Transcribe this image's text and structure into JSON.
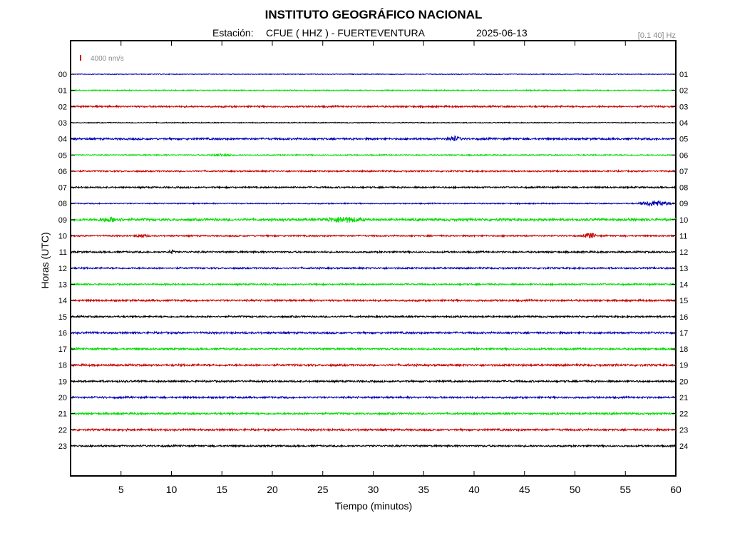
{
  "header": {
    "title": "INSTITUTO GEOGRÁFICO NACIONAL",
    "station_label": "Estación:",
    "station": "CFUE ( HHZ ) - FUERTEVENTURA",
    "date": "2025-06-13",
    "filter": "[0.1 40] Hz"
  },
  "scale": {
    "label": "4000 nm/s",
    "color": "#cc0000"
  },
  "chart_data": {
    "type": "line",
    "title": "INSTITUTO GEOGRÁFICO NACIONAL",
    "xlabel": "Tiempo (minutos)",
    "ylabel": "Horas (UTC)",
    "xlim": [
      0,
      60
    ],
    "x_ticks": [
      5,
      10,
      15,
      20,
      25,
      30,
      35,
      40,
      45,
      50,
      55,
      60
    ],
    "left_tick_labels": [
      "00",
      "01",
      "02",
      "03",
      "04",
      "05",
      "06",
      "07",
      "08",
      "09",
      "10",
      "11",
      "12",
      "13",
      "14",
      "15",
      "16",
      "17",
      "18",
      "19",
      "20",
      "21",
      "22",
      "23"
    ],
    "right_tick_labels": [
      "01",
      "02",
      "03",
      "04",
      "05",
      "06",
      "07",
      "08",
      "09",
      "10",
      "11",
      "12",
      "13",
      "14",
      "15",
      "16",
      "17",
      "18",
      "19",
      "20",
      "21",
      "22",
      "23",
      "24"
    ],
    "color_cycle": [
      "#0000b4",
      "#00dc00",
      "#c80000",
      "#000000"
    ],
    "grid": false,
    "series": [
      {
        "hour": "00",
        "amp": 0.6,
        "events": []
      },
      {
        "hour": "01",
        "amp": 0.9,
        "events": []
      },
      {
        "hour": "02",
        "amp": 1.4,
        "events": []
      },
      {
        "hour": "03",
        "amp": 0.7,
        "events": []
      },
      {
        "hour": "04",
        "amp": 1.6,
        "events": [
          {
            "t": 38,
            "amp": 3.0,
            "dur": 0.9
          }
        ]
      },
      {
        "hour": "05",
        "amp": 0.9,
        "events": [
          {
            "t": 15,
            "amp": 2.0,
            "dur": 1.2
          }
        ]
      },
      {
        "hour": "06",
        "amp": 1.2,
        "events": []
      },
      {
        "hour": "07",
        "amp": 1.3,
        "events": []
      },
      {
        "hour": "08",
        "amp": 0.9,
        "events": [
          {
            "t": 58,
            "amp": 4.0,
            "dur": 2.0
          }
        ]
      },
      {
        "hour": "09",
        "amp": 2.0,
        "events": [
          {
            "t": 27,
            "amp": 3.5,
            "dur": 2.5
          },
          {
            "t": 4,
            "amp": 2.6,
            "dur": 1.5
          }
        ]
      },
      {
        "hour": "10",
        "amp": 1.2,
        "events": [
          {
            "t": 7,
            "amp": 2.2,
            "dur": 0.8
          },
          {
            "t": 51.5,
            "amp": 4.0,
            "dur": 0.8
          }
        ]
      },
      {
        "hour": "11",
        "amp": 1.4,
        "events": [
          {
            "t": 10,
            "amp": 2.5,
            "dur": 0.4
          }
        ]
      },
      {
        "hour": "12",
        "amp": 1.3,
        "events": []
      },
      {
        "hour": "13",
        "amp": 1.3,
        "events": []
      },
      {
        "hour": "14",
        "amp": 1.5,
        "events": []
      },
      {
        "hour": "15",
        "amp": 1.4,
        "events": []
      },
      {
        "hour": "16",
        "amp": 1.6,
        "events": []
      },
      {
        "hour": "17",
        "amp": 1.5,
        "events": []
      },
      {
        "hour": "18",
        "amp": 1.6,
        "events": []
      },
      {
        "hour": "19",
        "amp": 1.5,
        "events": []
      },
      {
        "hour": "20",
        "amp": 1.5,
        "events": []
      },
      {
        "hour": "21",
        "amp": 1.5,
        "events": []
      },
      {
        "hour": "22",
        "amp": 1.6,
        "events": []
      },
      {
        "hour": "23",
        "amp": 1.4,
        "events": []
      }
    ]
  }
}
